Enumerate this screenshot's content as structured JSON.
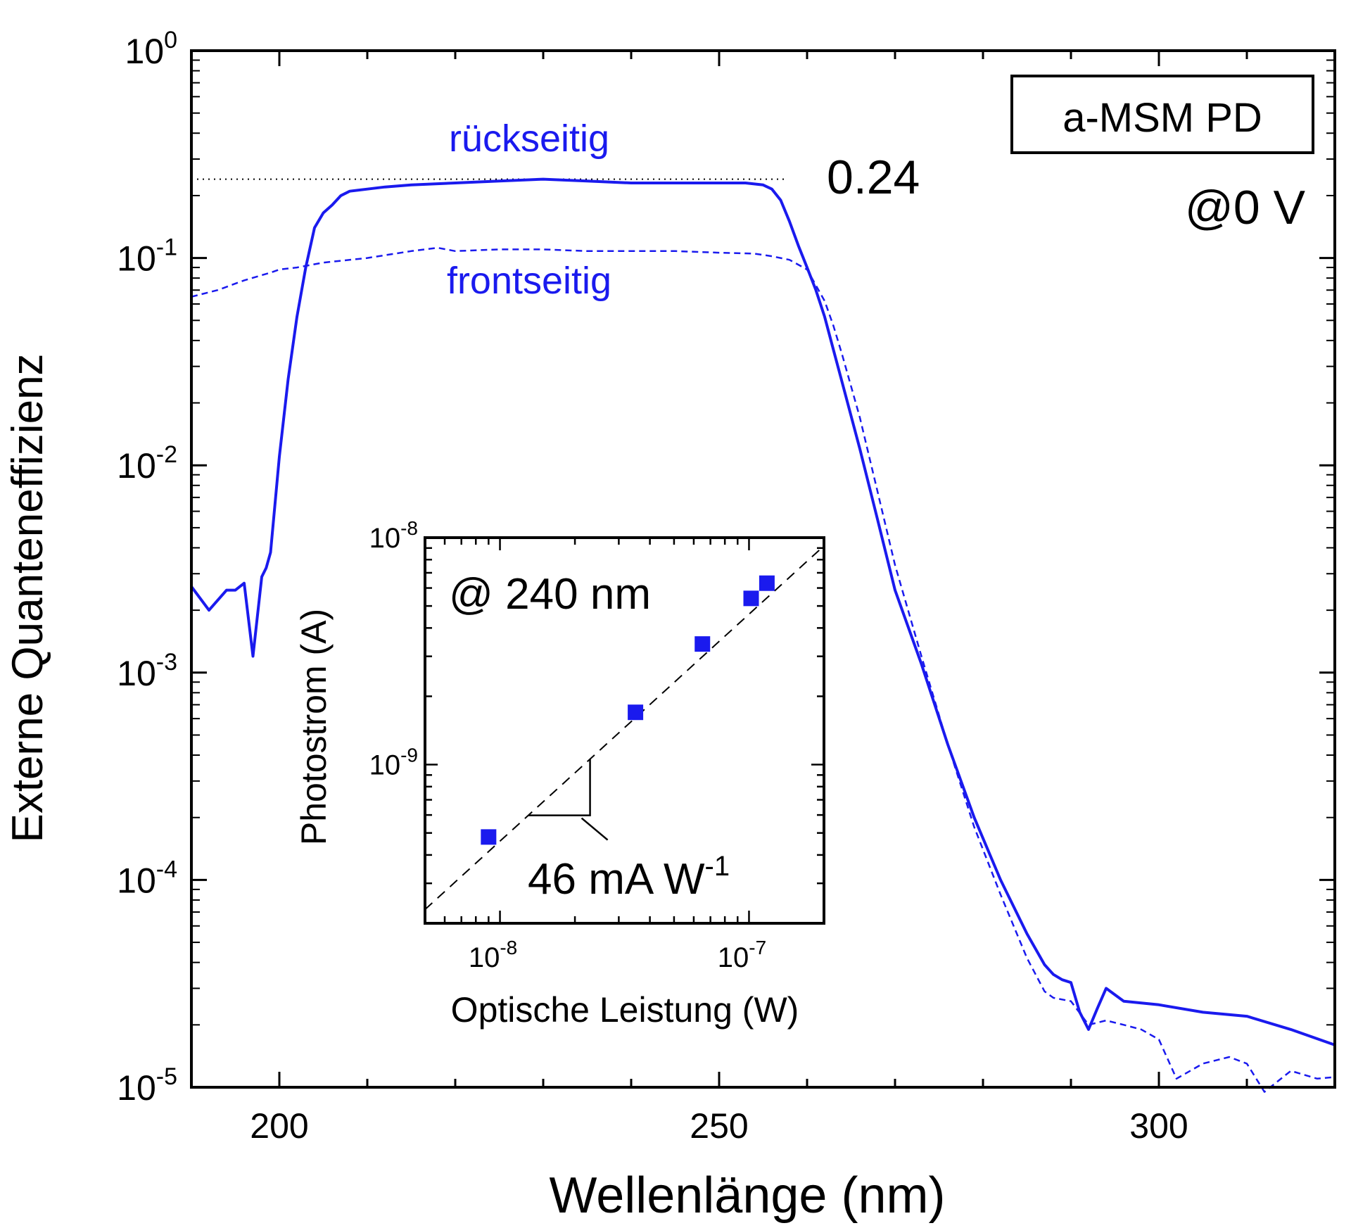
{
  "colors": {
    "series": "#1a1aee",
    "axis": "#000000",
    "reference": "#000000",
    "background": "#ffffff"
  },
  "chart_data": [
    {
      "type": "line",
      "xlabel": "Wellenlänge (nm)",
      "ylabel": "Externe Quanteneffizienz",
      "xlim": [
        190,
        320
      ],
      "ylim": [
        1e-05,
        1
      ],
      "yscale": "log",
      "x_ticks": [
        "200",
        "250",
        "300"
      ],
      "y_ticks": [
        {
          "base": "10",
          "exp": "0"
        },
        {
          "base": "10",
          "exp": "-1"
        },
        {
          "base": "10",
          "exp": "-2"
        },
        {
          "base": "10",
          "exp": "-3"
        },
        {
          "base": "10",
          "exp": "-4"
        },
        {
          "base": "10",
          "exp": "-5"
        }
      ],
      "grid": false,
      "annotations": {
        "device_box": "a-MSM PD",
        "bias": "@0 V",
        "peak_value": "0.24",
        "reference_line_y": 0.24
      },
      "series": [
        {
          "name": "rückseitig",
          "style": "solid",
          "x": [
            190,
            192,
            194,
            195,
            196,
            197,
            198,
            198.5,
            199,
            200,
            201,
            202,
            203,
            204,
            205,
            206,
            207,
            208,
            210,
            212,
            215,
            220,
            225,
            230,
            235,
            240,
            245,
            250,
            253,
            255,
            256,
            257,
            258,
            259,
            260,
            261,
            262,
            263,
            264,
            266,
            268,
            270,
            273,
            276,
            279,
            282,
            285,
            287,
            288,
            289,
            290,
            291,
            292,
            293,
            294,
            296,
            300,
            305,
            310,
            315,
            320
          ],
          "y": [
            0.0026,
            0.002,
            0.0025,
            0.0025,
            0.0027,
            0.0012,
            0.0029,
            0.0032,
            0.0038,
            0.011,
            0.026,
            0.052,
            0.09,
            0.14,
            0.165,
            0.18,
            0.2,
            0.21,
            0.215,
            0.22,
            0.225,
            0.23,
            0.235,
            0.24,
            0.235,
            0.23,
            0.23,
            0.23,
            0.23,
            0.225,
            0.215,
            0.19,
            0.15,
            0.115,
            0.09,
            0.07,
            0.052,
            0.036,
            0.025,
            0.012,
            0.0055,
            0.0025,
            0.0011,
            0.00045,
            0.0002,
            0.0001,
            5.5e-05,
            3.9e-05,
            3.5e-05,
            3.3e-05,
            3.2e-05,
            2.3e-05,
            1.9e-05,
            2.4e-05,
            3e-05,
            2.6e-05,
            2.5e-05,
            2.3e-05,
            2.2e-05,
            1.9e-05,
            1.6e-05
          ]
        },
        {
          "name": "frontseitig",
          "style": "dashed",
          "x": [
            190,
            193,
            196,
            199,
            200,
            202,
            205,
            210,
            215,
            218,
            220,
            225,
            230,
            235,
            240,
            245,
            250,
            254,
            256,
            258,
            260,
            262,
            263,
            264,
            266,
            268,
            270,
            273,
            276,
            279,
            282,
            285,
            287,
            288,
            290,
            292,
            294,
            296,
            298,
            300,
            302,
            305,
            308,
            310,
            312,
            315,
            318,
            320
          ],
          "y": [
            0.065,
            0.07,
            0.078,
            0.085,
            0.088,
            0.09,
            0.095,
            0.1,
            0.108,
            0.112,
            0.108,
            0.11,
            0.11,
            0.108,
            0.108,
            0.108,
            0.106,
            0.105,
            0.102,
            0.098,
            0.088,
            0.062,
            0.047,
            0.034,
            0.017,
            0.0075,
            0.0033,
            0.0012,
            0.00045,
            0.00018,
            8.5e-05,
            4.2e-05,
            2.9e-05,
            2.7e-05,
            2.6e-05,
            2e-05,
            2.1e-05,
            2e-05,
            1.9e-05,
            1.7e-05,
            1.1e-05,
            1.3e-05,
            1.4e-05,
            1.3e-05,
            9.5e-06,
            1.2e-05,
            1.1e-05,
            1.12e-05
          ]
        }
      ]
    },
    {
      "type": "scatter",
      "xlabel": "Optische Leistung (W)",
      "ylabel": "Photostrom (A)",
      "xlim": [
        5e-09,
        2e-07
      ],
      "ylim": [
        2e-10,
        1e-08
      ],
      "xscale": "log",
      "yscale": "log",
      "x_ticks": [
        {
          "base": "10",
          "exp": "-8"
        },
        {
          "base": "10",
          "exp": "-7"
        }
      ],
      "y_ticks": [
        {
          "base": "10",
          "exp": "-8"
        },
        {
          "base": "10",
          "exp": "-9"
        }
      ],
      "grid": false,
      "annotations": {
        "condition": "@ 240 nm",
        "slope_label": {
          "base": "46 mA W",
          "exp": "-1"
        },
        "fit_slope_A_per_W": 0.046
      },
      "points": {
        "x": [
          9e-09,
          3.5e-08,
          6.5e-08,
          1.02e-07,
          1.18e-07
        ],
        "y": [
          4.8e-10,
          1.7e-09,
          3.4e-09,
          5.4e-09,
          6.3e-09
        ]
      }
    }
  ]
}
